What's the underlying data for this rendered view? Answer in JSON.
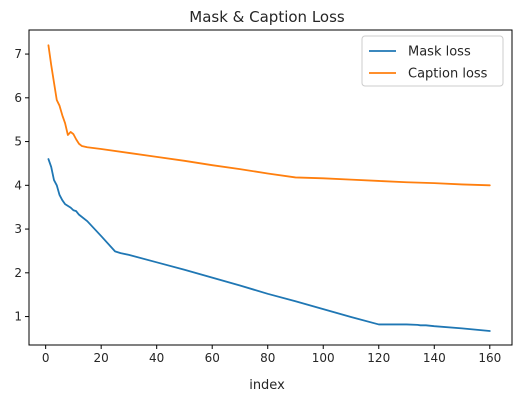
{
  "chart_data": {
    "type": "line",
    "title": "Mask & Caption Loss",
    "xlabel": "index",
    "ylabel": "",
    "xlim": [
      -6,
      168
    ],
    "ylim": [
      0.35,
      7.55
    ],
    "xticks": [
      0,
      20,
      40,
      60,
      80,
      100,
      120,
      140,
      160
    ],
    "yticks": [
      1,
      2,
      3,
      4,
      5,
      6,
      7
    ],
    "grid": false,
    "legend_position": "top-right",
    "series": [
      {
        "name": "Mask loss",
        "color": "#1f77b4",
        "x": [
          1,
          2,
          3,
          4,
          5,
          6,
          7,
          8,
          9,
          10,
          11,
          12,
          15,
          20,
          25,
          27,
          30,
          40,
          50,
          60,
          70,
          80,
          90,
          100,
          110,
          120,
          130,
          134,
          135,
          137,
          140,
          150,
          160
        ],
        "y": [
          4.6,
          4.42,
          4.12,
          4.0,
          3.78,
          3.66,
          3.57,
          3.53,
          3.49,
          3.43,
          3.41,
          3.33,
          3.18,
          2.84,
          2.49,
          2.45,
          2.41,
          2.24,
          2.07,
          1.89,
          1.71,
          1.52,
          1.35,
          1.17,
          0.99,
          0.82,
          0.82,
          0.81,
          0.8,
          0.8,
          0.78,
          0.73,
          0.67
        ]
      },
      {
        "name": "Caption loss",
        "color": "#ff7f0e",
        "x": [
          1,
          2,
          3,
          4,
          5,
          6,
          7,
          8,
          9,
          10,
          11,
          12,
          13,
          15,
          20,
          30,
          40,
          50,
          60,
          70,
          80,
          90,
          100,
          110,
          120,
          130,
          140,
          150,
          160
        ],
        "y": [
          7.2,
          6.75,
          6.35,
          5.95,
          5.82,
          5.6,
          5.42,
          5.15,
          5.22,
          5.17,
          5.05,
          4.95,
          4.9,
          4.87,
          4.83,
          4.74,
          4.65,
          4.56,
          4.46,
          4.37,
          4.27,
          4.18,
          4.16,
          4.13,
          4.1,
          4.07,
          4.05,
          4.02,
          4.0
        ]
      }
    ]
  }
}
